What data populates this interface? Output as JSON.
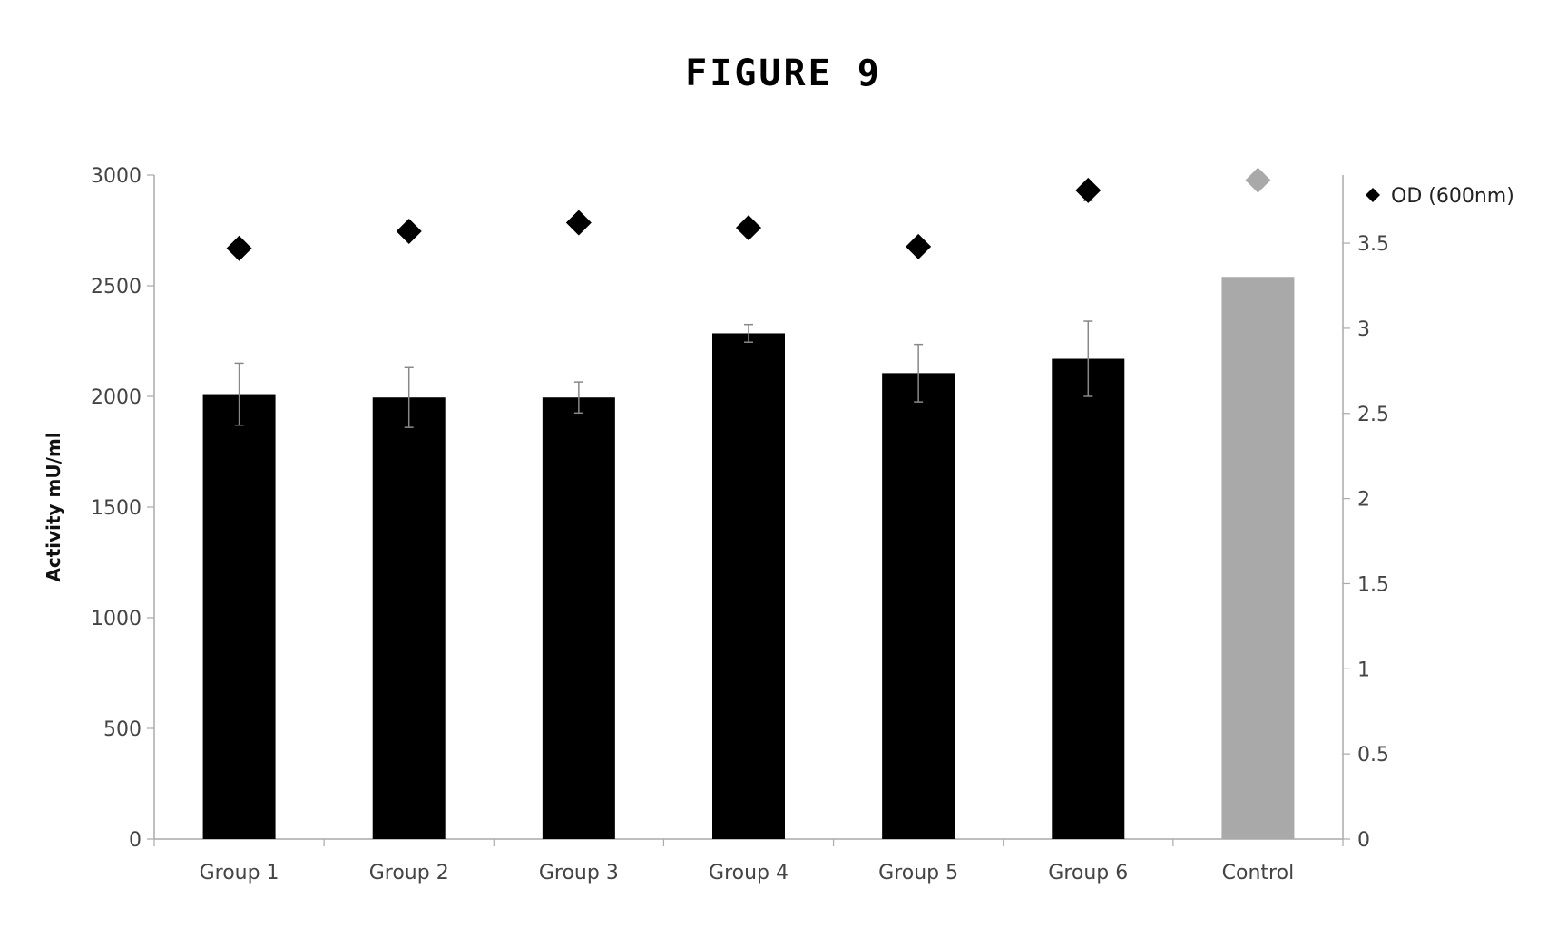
{
  "figure_title": "FIGURE 9",
  "chart_data": {
    "type": "bar",
    "categories": [
      "Group 1",
      "Group 2",
      "Group 3",
      "Group 4",
      "Group 5",
      "Group 6",
      "Control"
    ],
    "ylabel": "Activity mU/ml",
    "ylim": [
      0,
      3000
    ],
    "yticks": [
      "0",
      "500",
      "1000",
      "1500",
      "2000",
      "2500",
      "3000"
    ],
    "y2lim": [
      0,
      3.9
    ],
    "y2ticks": [
      "0",
      "0.5",
      "1",
      "1.5",
      "2",
      "2.5",
      "3",
      "3.5"
    ],
    "legend_position": "top-right",
    "bar_colors": [
      "#000000",
      "#000000",
      "#000000",
      "#000000",
      "#000000",
      "#000000",
      "#a9a9a9"
    ],
    "marker_colors": [
      "#000000",
      "#000000",
      "#000000",
      "#000000",
      "#000000",
      "#000000",
      "#a9a9a9"
    ],
    "series": [
      {
        "values": [
          2010,
          1995,
          1995,
          2285,
          2105,
          2170,
          2540
        ],
        "errors": [
          140,
          135,
          70,
          40,
          130,
          170,
          0
        ]
      },
      {
        "name": "OD (600nm)",
        "axis": "right",
        "marker": "diamond",
        "values": [
          3.47,
          3.57,
          3.62,
          3.59,
          3.48,
          3.81,
          3.87
        ],
        "errors": [
          0,
          0,
          0,
          0,
          0,
          0.06,
          0
        ]
      }
    ]
  }
}
